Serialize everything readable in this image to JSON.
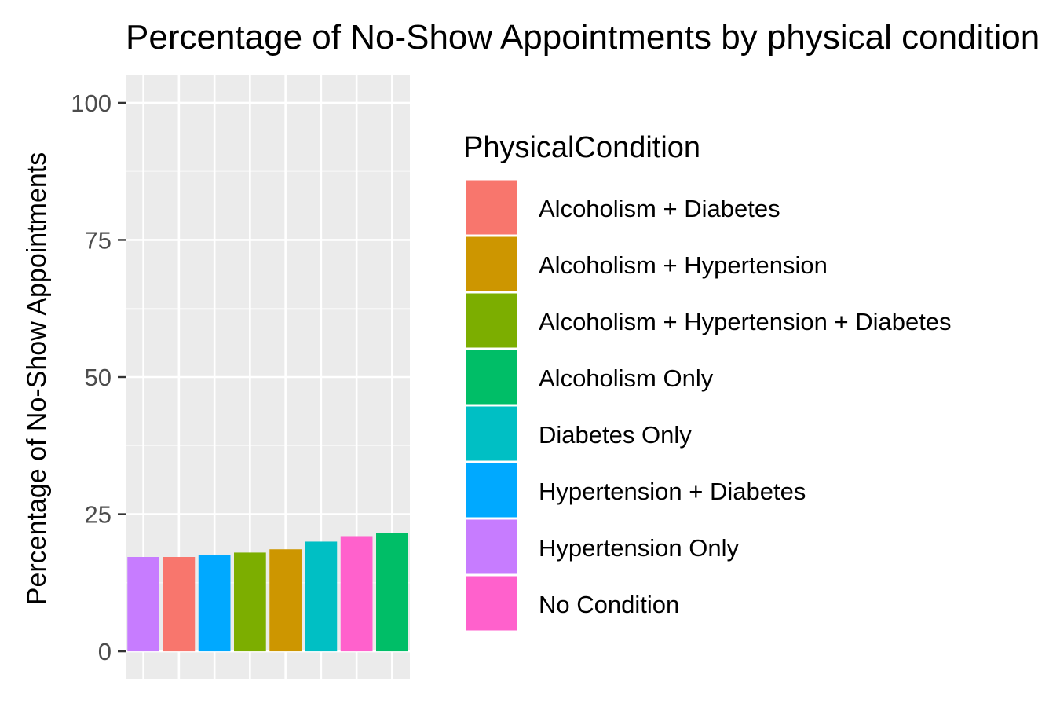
{
  "chart_data": {
    "type": "bar",
    "title": "Percentage of No-Show Appointments by physical condition",
    "xlabel": "",
    "ylabel": "Percentage of No-Show Appointments",
    "ylim": [
      -5,
      105
    ],
    "yticks": [
      0,
      25,
      50,
      75,
      100
    ],
    "grid": true,
    "legend_position": "right",
    "legend_title": "PhysicalCondition",
    "categories": [
      "Hypertension Only",
      "Alcoholism + Diabetes",
      "Hypertension + Diabetes",
      "Alcoholism + Hypertension + Diabetes",
      "Alcoholism + Hypertension",
      "Diabetes Only",
      "No Condition",
      "Alcoholism Only"
    ],
    "values": [
      17.2,
      17.2,
      17.6,
      18.0,
      18.6,
      20.0,
      21.0,
      21.6
    ],
    "legend": [
      {
        "label": "Alcoholism + Diabetes",
        "color": "#F8766D"
      },
      {
        "label": "Alcoholism + Hypertension",
        "color": "#CD9600"
      },
      {
        "label": "Alcoholism + Hypertension + Diabetes",
        "color": "#7CAE00"
      },
      {
        "label": "Alcoholism Only",
        "color": "#00BE67"
      },
      {
        "label": "Diabetes Only",
        "color": "#00BFC4"
      },
      {
        "label": "Hypertension + Diabetes",
        "color": "#00A9FF"
      },
      {
        "label": "Hypertension Only",
        "color": "#C77CFF"
      },
      {
        "label": "No Condition",
        "color": "#FF61CC"
      }
    ]
  },
  "colors": {
    "panel_background": "#EBEBEB",
    "grid_major": "#FFFFFF",
    "axis_text": "#4D4D4D",
    "title_text": "#000000"
  }
}
